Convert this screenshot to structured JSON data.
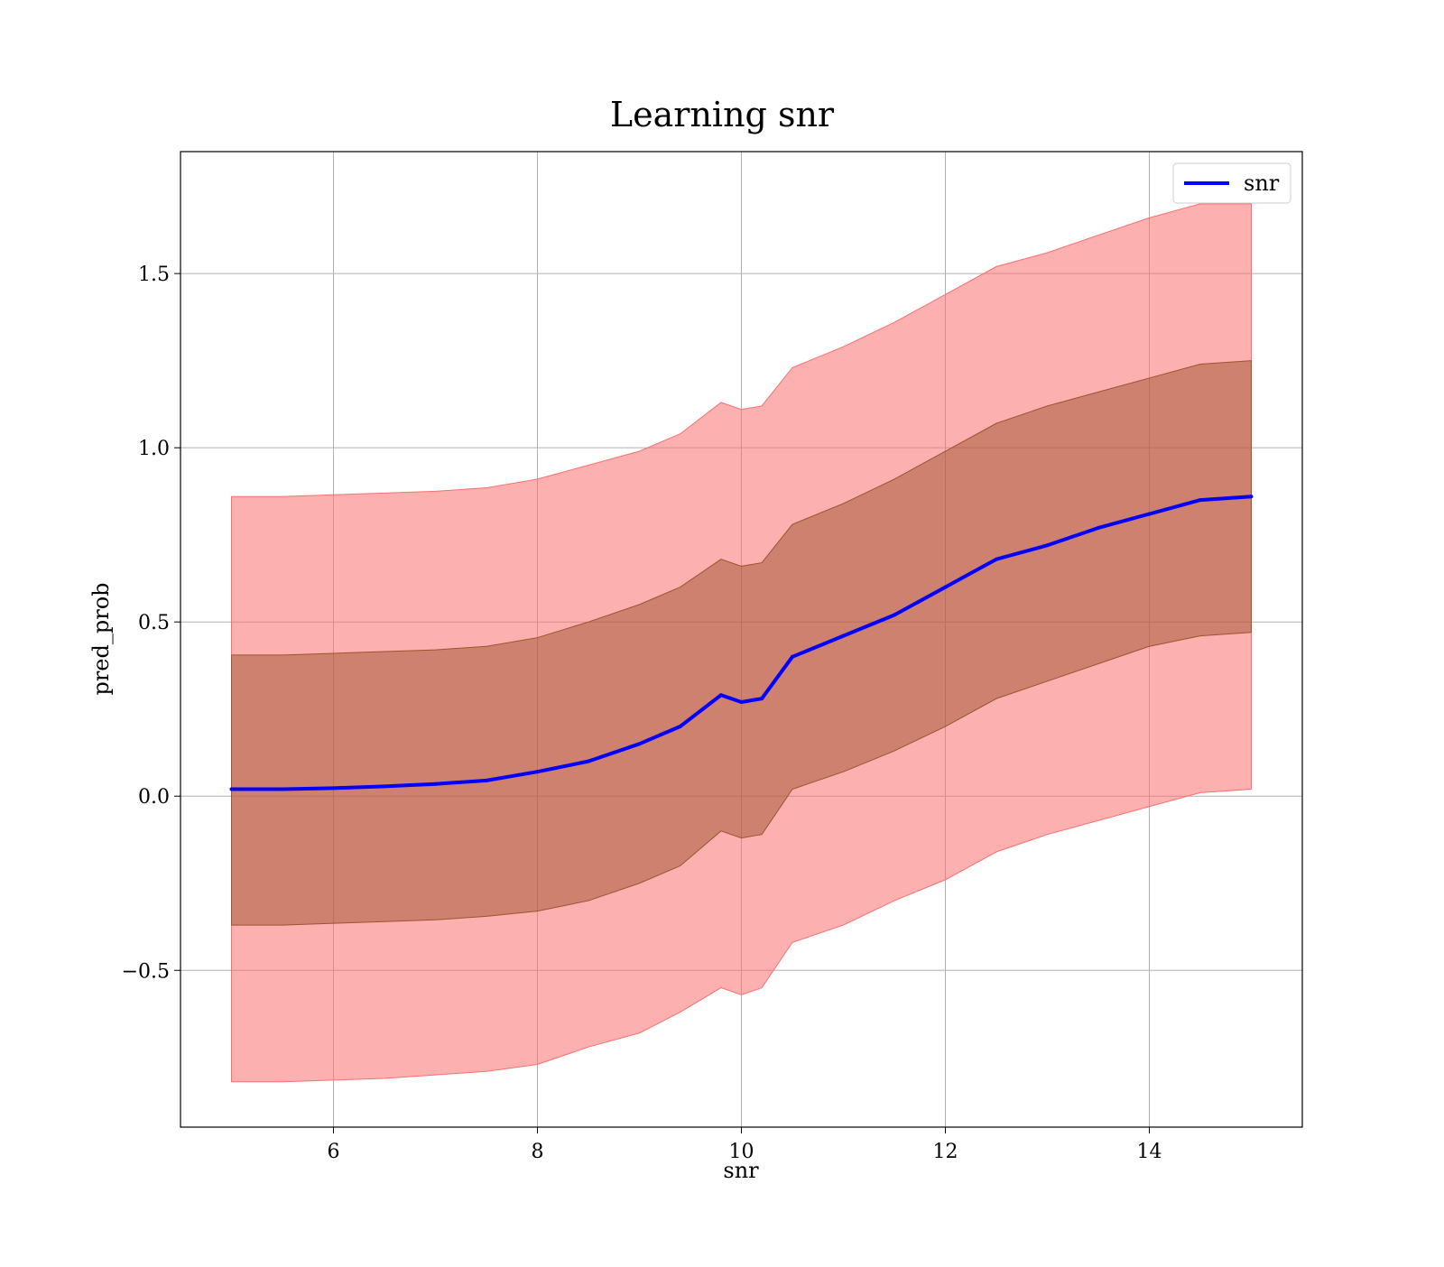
{
  "chart_data": {
    "type": "line",
    "title": "Learning snr",
    "xlabel": "snr",
    "ylabel": "pred_prob",
    "xlim": [
      4.5,
      15.5
    ],
    "ylim": [
      -0.95,
      1.85
    ],
    "x_ticks": [
      6,
      8,
      10,
      12,
      14
    ],
    "y_ticks": [
      -0.5,
      0.0,
      0.5,
      1.0,
      1.5
    ],
    "x_tick_labels": [
      "6",
      "8",
      "10",
      "12",
      "14"
    ],
    "y_tick_labels": [
      "−0.5",
      "0.0",
      "0.5",
      "1.0",
      "1.5"
    ],
    "grid": true,
    "legend_position": "top-right",
    "series": [
      {
        "name": "snr",
        "color": "#0000ff",
        "x": [
          5.0,
          5.5,
          6.0,
          6.5,
          7.0,
          7.5,
          8.0,
          8.5,
          9.0,
          9.4,
          9.8,
          10.0,
          10.2,
          10.5,
          11.0,
          11.5,
          12.0,
          12.5,
          13.0,
          13.5,
          14.0,
          14.5,
          15.0
        ],
        "values": [
          0.02,
          0.02,
          0.023,
          0.028,
          0.035,
          0.045,
          0.07,
          0.1,
          0.15,
          0.2,
          0.29,
          0.27,
          0.28,
          0.4,
          0.46,
          0.52,
          0.6,
          0.68,
          0.72,
          0.77,
          0.81,
          0.85,
          0.86
        ],
        "std_band": {
          "lower": [
            -0.37,
            -0.37,
            -0.365,
            -0.36,
            -0.355,
            -0.345,
            -0.33,
            -0.3,
            -0.25,
            -0.2,
            -0.1,
            -0.12,
            -0.11,
            0.02,
            0.07,
            0.13,
            0.2,
            0.28,
            0.33,
            0.38,
            0.43,
            0.46,
            0.47
          ],
          "upper": [
            0.405,
            0.405,
            0.41,
            0.415,
            0.42,
            0.43,
            0.455,
            0.5,
            0.55,
            0.6,
            0.68,
            0.66,
            0.67,
            0.78,
            0.84,
            0.91,
            0.99,
            1.07,
            1.12,
            1.16,
            1.2,
            1.24,
            1.25
          ],
          "color": "#a0522d"
        },
        "two_std_band": {
          "lower": [
            -0.82,
            -0.82,
            -0.815,
            -0.81,
            -0.8,
            -0.79,
            -0.77,
            -0.72,
            -0.68,
            -0.62,
            -0.55,
            -0.57,
            -0.55,
            -0.42,
            -0.37,
            -0.3,
            -0.24,
            -0.16,
            -0.11,
            -0.07,
            -0.03,
            0.01,
            0.02
          ],
          "upper": [
            0.86,
            0.86,
            0.865,
            0.87,
            0.875,
            0.885,
            0.91,
            0.95,
            0.99,
            1.04,
            1.13,
            1.11,
            1.12,
            1.23,
            1.29,
            1.36,
            1.44,
            1.52,
            1.56,
            1.61,
            1.66,
            1.7,
            1.7
          ],
          "color": "#fa7070"
        }
      }
    ]
  }
}
